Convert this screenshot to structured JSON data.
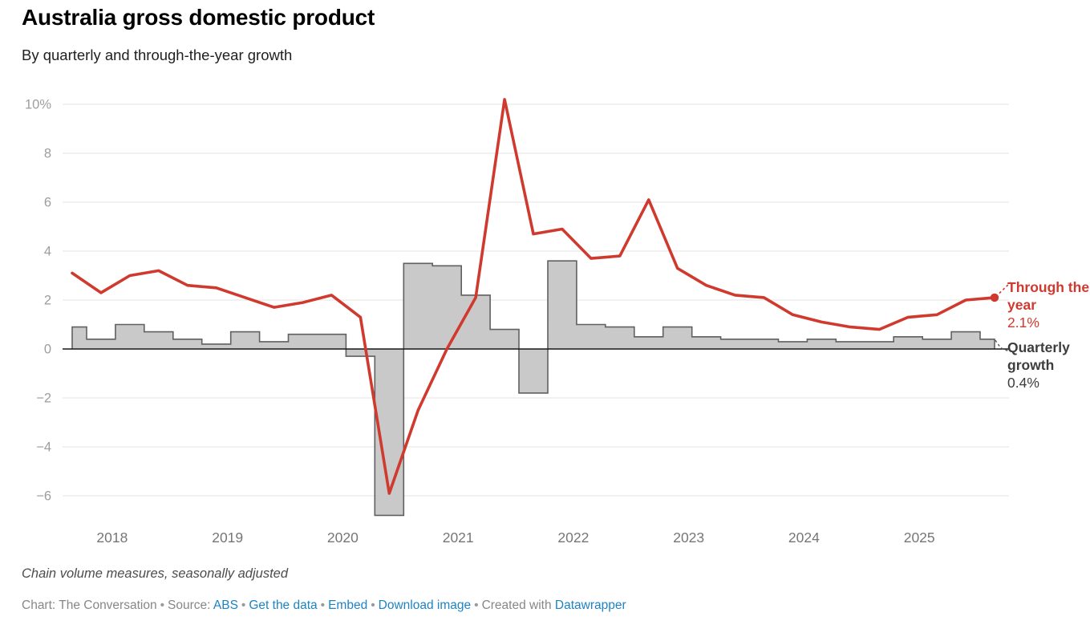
{
  "header": {
    "title": "Australia gross domestic product",
    "subtitle": "By quarterly and through-the-year growth"
  },
  "chart_data": {
    "type": "combo (bar + line)",
    "title": "Australia gross domestic product",
    "subtitle": "By quarterly and through-the-year growth",
    "unit": "%",
    "categories": [
      "2017 Q3",
      "2017 Q4",
      "2018 Q1",
      "2018 Q2",
      "2018 Q3",
      "2018 Q4",
      "2019 Q1",
      "2019 Q2",
      "2019 Q3",
      "2019 Q4",
      "2020 Q1",
      "2020 Q2",
      "2020 Q3",
      "2020 Q4",
      "2021 Q1",
      "2021 Q2",
      "2021 Q3",
      "2021 Q4",
      "2022 Q1",
      "2022 Q2",
      "2022 Q3",
      "2022 Q4",
      "2023 Q1",
      "2023 Q2",
      "2023 Q3",
      "2023 Q4",
      "2024 Q1",
      "2024 Q2",
      "2024 Q3",
      "2024 Q4",
      "2025 Q1",
      "2025 Q2",
      "2025 Q3"
    ],
    "series": [
      {
        "name": "Quarterly growth",
        "type": "bar",
        "values": [
          0.9,
          0.4,
          1.0,
          0.7,
          0.4,
          0.2,
          0.7,
          0.3,
          0.6,
          0.6,
          -0.3,
          -6.8,
          3.5,
          3.4,
          2.2,
          0.8,
          -1.8,
          3.6,
          1.0,
          0.9,
          0.5,
          0.9,
          0.5,
          0.4,
          0.4,
          0.3,
          0.4,
          0.3,
          0.3,
          0.5,
          0.4,
          0.7,
          0.4
        ]
      },
      {
        "name": "Through the year",
        "type": "line",
        "values": [
          3.1,
          2.3,
          3.0,
          3.2,
          2.6,
          2.5,
          2.1,
          1.7,
          1.9,
          2.2,
          1.3,
          -5.9,
          -2.5,
          0.0,
          2.1,
          10.2,
          4.7,
          4.9,
          3.7,
          3.8,
          6.1,
          3.3,
          2.6,
          2.2,
          2.1,
          1.4,
          1.1,
          0.9,
          0.8,
          1.3,
          1.4,
          2.0,
          2.1
        ]
      }
    ],
    "ylim": [
      -7,
      10.5
    ],
    "yticks": [
      {
        "v": 10,
        "label": "10%"
      },
      {
        "v": 8,
        "label": "8"
      },
      {
        "v": 6,
        "label": "6"
      },
      {
        "v": 4,
        "label": "4"
      },
      {
        "v": 2,
        "label": "2"
      },
      {
        "v": 0,
        "label": "0"
      },
      {
        "v": -2,
        "label": "−2"
      },
      {
        "v": -4,
        "label": "−4"
      },
      {
        "v": -6,
        "label": "−6"
      }
    ],
    "x_year_ticks": [
      "2018",
      "2019",
      "2020",
      "2021",
      "2022",
      "2023",
      "2024",
      "2025"
    ],
    "grid": "horizontal light gridlines, solid black zero axis",
    "legend_position": "series end labels at right margin"
  },
  "annotations": {
    "line_end_label": "Through the year",
    "line_end_value": "2.1%",
    "bar_end_label": "Quarterly growth",
    "bar_end_value": "0.4%"
  },
  "colors": {
    "line": "#d03a2e",
    "bar_fill": "#c9c9c9",
    "bar_stroke": "#606060",
    "grid": "#e3e3e3",
    "zero_axis": "#161616",
    "axis_text": "#9d9d9d",
    "year_text": "#767676",
    "dark_label": "#3d3d3d",
    "link": "#1d83c4"
  },
  "footer": {
    "note": "Chain volume measures, seasonally adjusted",
    "credit": [
      {
        "text": "Chart: The Conversation",
        "link": false,
        "bullet_after": true
      },
      {
        "text": "Source:",
        "link": false,
        "bullet_after": false
      },
      {
        "text": "ABS",
        "link": true,
        "bullet_after": true
      },
      {
        "text": "Get the data",
        "link": true,
        "bullet_after": true
      },
      {
        "text": "Embed",
        "link": true,
        "bullet_after": true
      },
      {
        "text": "Download image",
        "link": true,
        "bullet_after": true
      },
      {
        "text": "Created with",
        "link": false,
        "bullet_after": false
      },
      {
        "text": "Datawrapper",
        "link": true,
        "bullet_after": false
      }
    ]
  }
}
